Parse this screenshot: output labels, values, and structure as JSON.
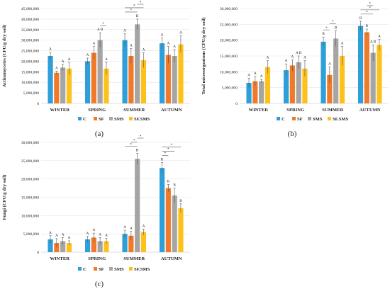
{
  "chart_data": [
    {
      "type": "bar",
      "panel": "(a)",
      "ylabel": "Actinomycetes (CFU/g dry soil)",
      "ylim": [
        0,
        45000000
      ],
      "ytick_labels": [
        "0",
        "5,000,000",
        "10,000,000",
        "15,000,000",
        "20,000,000",
        "25,000,000",
        "30,000,000",
        "35,000,000",
        "40,000,000",
        "45,000,000"
      ],
      "categories": [
        "WINTER",
        "SPRING",
        "SUMMER",
        "AUTUMN"
      ],
      "series": [
        {
          "name": "C",
          "color": "#2e9fd8",
          "values": [
            22500000,
            20000000,
            30000000,
            28500000
          ],
          "errors": [
            1800000,
            1500000,
            3000000,
            2500000
          ],
          "letters": [
            "A",
            "A",
            "A",
            "A"
          ]
        },
        {
          "name": "SF",
          "color": "#f07a2a",
          "values": [
            14500000,
            24000000,
            22500000,
            23000000
          ],
          "errors": [
            800000,
            3000000,
            3500000,
            4000000
          ],
          "letters": [
            "A",
            "A",
            "A",
            "A"
          ]
        },
        {
          "name": "SMS",
          "color": "#a5a5a5",
          "values": [
            17000000,
            30000000,
            37500000,
            22500000
          ],
          "errors": [
            1500000,
            3500000,
            2500000,
            3000000
          ],
          "letters": [
            "A",
            "A B",
            "B",
            "A"
          ]
        },
        {
          "name": "SF.SMS",
          "color": "#fcc21b",
          "values": [
            16500000,
            16500000,
            20500000,
            28000000
          ],
          "errors": [
            3000000,
            3000000,
            3500000,
            4000000
          ],
          "letters": [
            "A",
            "A",
            "A",
            "A"
          ]
        }
      ],
      "significance": [
        {
          "category": "SPRING",
          "from": 2,
          "to": 3,
          "label": "*"
        },
        {
          "category": "SUMMER",
          "from": 0,
          "to": 2,
          "label": "*"
        },
        {
          "category": "SUMMER",
          "from": 0,
          "to": 3,
          "label": "*"
        },
        {
          "category": "SUMMER",
          "from": 2,
          "to": 3,
          "label": "*"
        }
      ]
    },
    {
      "type": "bar",
      "panel": "(b)",
      "ylabel": "Total microorganisms (CFU/g dry soil)",
      "ylim": [
        0,
        30000000
      ],
      "ytick_labels": [
        "0",
        "5,000,000",
        "10,000,000",
        "15,000,000",
        "20,000,000",
        "25,000,000",
        "30,000,000"
      ],
      "categories": [
        "WINTER",
        "SPRING",
        "SUMMER",
        "AUTUMN"
      ],
      "series": [
        {
          "name": "C",
          "color": "#2e9fd8",
          "values": [
            6500000,
            10500000,
            19500000,
            24500000
          ],
          "errors": [
            1500000,
            2000000,
            1500000,
            1500000
          ],
          "letters": [
            "A",
            "A",
            "B",
            "B"
          ]
        },
        {
          "name": "SF",
          "color": "#f07a2a",
          "values": [
            7000000,
            12000000,
            9000000,
            22500000
          ],
          "errors": [
            1500000,
            1800000,
            2500000,
            1000000
          ],
          "letters": [
            "A",
            "A",
            "A",
            "B"
          ]
        },
        {
          "name": "SMS",
          "color": "#a5a5a5",
          "values": [
            7000000,
            13000000,
            20500000,
            16000000
          ],
          "errors": [
            600000,
            2000000,
            2500000,
            2500000
          ],
          "letters": [
            "A",
            "A B",
            "B",
            "A B"
          ]
        },
        {
          "name": "SF.SMS",
          "color": "#fcc21b",
          "values": [
            11500000,
            11000000,
            15000000,
            18500000
          ],
          "errors": [
            2000000,
            2500000,
            3000000,
            1800000
          ],
          "letters": [
            "A",
            "A",
            "A",
            "A"
          ]
        }
      ],
      "significance": [
        {
          "category": "SUMMER",
          "from": 0,
          "to": 1,
          "label": "*"
        },
        {
          "category": "SUMMER",
          "from": 1,
          "to": 2,
          "label": "*"
        },
        {
          "category": "AUTUMN",
          "from": 0,
          "to": 2,
          "label": "*"
        },
        {
          "category": "AUTUMN",
          "from": 0,
          "to": 3,
          "label": "*"
        },
        {
          "category": "AUTUMN",
          "from": 1,
          "to": 2,
          "label": "*"
        }
      ]
    },
    {
      "type": "bar",
      "panel": "(c)",
      "ylabel": "Fungi (CFU/g dry soil)",
      "ylim": [
        0,
        30000000
      ],
      "ytick_labels": [
        "0",
        "5,000,000",
        "10,000,000",
        "15,000,000",
        "20,000,000",
        "25,000,000",
        "30,000,000"
      ],
      "categories": [
        "WINTER",
        "SPRING",
        "SUMMER",
        "AUTUMN"
      ],
      "series": [
        {
          "name": "C",
          "color": "#2e9fd8",
          "values": [
            3500000,
            3500000,
            5000000,
            23000000
          ],
          "errors": [
            1000000,
            800000,
            1000000,
            1500000
          ],
          "letters": [
            "A",
            "A",
            "A",
            "B"
          ]
        },
        {
          "name": "SF",
          "color": "#f07a2a",
          "values": [
            2500000,
            4000000,
            4500000,
            17500000
          ],
          "errors": [
            1200000,
            1200000,
            1200000,
            1000000
          ],
          "letters": [
            "A",
            "A",
            "A",
            "B"
          ]
        },
        {
          "name": "SMS",
          "color": "#a5a5a5",
          "values": [
            3000000,
            3000000,
            25500000,
            15500000
          ],
          "errors": [
            1000000,
            1000000,
            1500000,
            2000000
          ],
          "letters": [
            "A",
            "A",
            "B",
            "B"
          ]
        },
        {
          "name": "SF.SMS",
          "color": "#fcc21b",
          "values": [
            2500000,
            3000000,
            5500000,
            12000000
          ],
          "errors": [
            600000,
            800000,
            800000,
            1200000
          ],
          "letters": [
            "A",
            "A",
            "A",
            "B"
          ]
        }
      ],
      "significance": [
        {
          "category": "SUMMER",
          "from": 0,
          "to": 2,
          "label": "*"
        },
        {
          "category": "SUMMER",
          "from": 1,
          "to": 2,
          "label": "*"
        },
        {
          "category": "SUMMER",
          "from": 2,
          "to": 3,
          "label": "*"
        },
        {
          "category": "AUTUMN",
          "from": 0,
          "to": 1,
          "label": "*"
        },
        {
          "category": "AUTUMN",
          "from": 0,
          "to": 2,
          "label": "*"
        },
        {
          "category": "AUTUMN",
          "from": 0,
          "to": 3,
          "label": "*"
        }
      ]
    }
  ]
}
